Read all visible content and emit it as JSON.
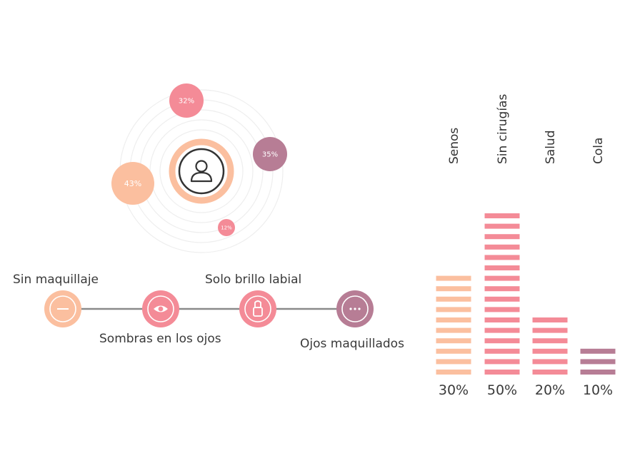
{
  "colors": {
    "peach": "#fbbf9f",
    "pink": "#f48b97",
    "mauve": "#b77d95",
    "ring": "#eeeeee",
    "line": "#8a8a8a",
    "text": "#3a3a3a",
    "ink": "#333333"
  },
  "orbit": {
    "center_icon": "user-icon",
    "bubbles": [
      {
        "label": "32%",
        "color": "pink"
      },
      {
        "label": "35%",
        "color": "mauve"
      },
      {
        "label": "43%",
        "color": "peach"
      },
      {
        "label": "12%",
        "color": "pink"
      }
    ]
  },
  "timeline": {
    "steps": [
      {
        "label": "Sin maquillaje",
        "icon": "minus-icon",
        "color": "peach"
      },
      {
        "label": "Sombras en los ojos",
        "icon": "eye-icon",
        "color": "pink"
      },
      {
        "label": "Solo brillo labial",
        "icon": "lipstick-icon",
        "color": "pink"
      },
      {
        "label": "Ojos maquillados",
        "icon": "ellipsis-icon",
        "color": "mauve"
      }
    ]
  },
  "chart_data": {
    "type": "bar",
    "categories": [
      "Senos",
      "Sin cirugías",
      "Salud",
      "Cola"
    ],
    "values": [
      30,
      50,
      20,
      10
    ],
    "value_labels": [
      "30%",
      "50%",
      "20%",
      "10%"
    ],
    "bar_colors": [
      "peach",
      "pink",
      "pink",
      "mauve"
    ],
    "ylim": [
      0,
      50
    ],
    "grid": false,
    "legend": "none"
  }
}
